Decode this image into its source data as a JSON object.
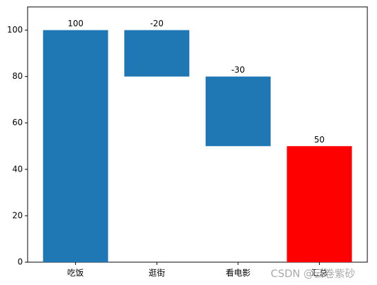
{
  "chart_data": {
    "type": "waterfall",
    "categories": [
      "吃饭",
      "逛街",
      "看电影",
      "汇总"
    ],
    "values": [
      100,
      -20,
      -30,
      50
    ],
    "colors": [
      "#1f77b4",
      "#1f77b4",
      "#1f77b4",
      "#ff0000"
    ],
    "total_last": true,
    "ylim": [
      0,
      110
    ],
    "yticks": [
      0,
      20,
      40,
      60,
      80,
      100
    ]
  },
  "watermark": "CSDN @云卷紫砂"
}
